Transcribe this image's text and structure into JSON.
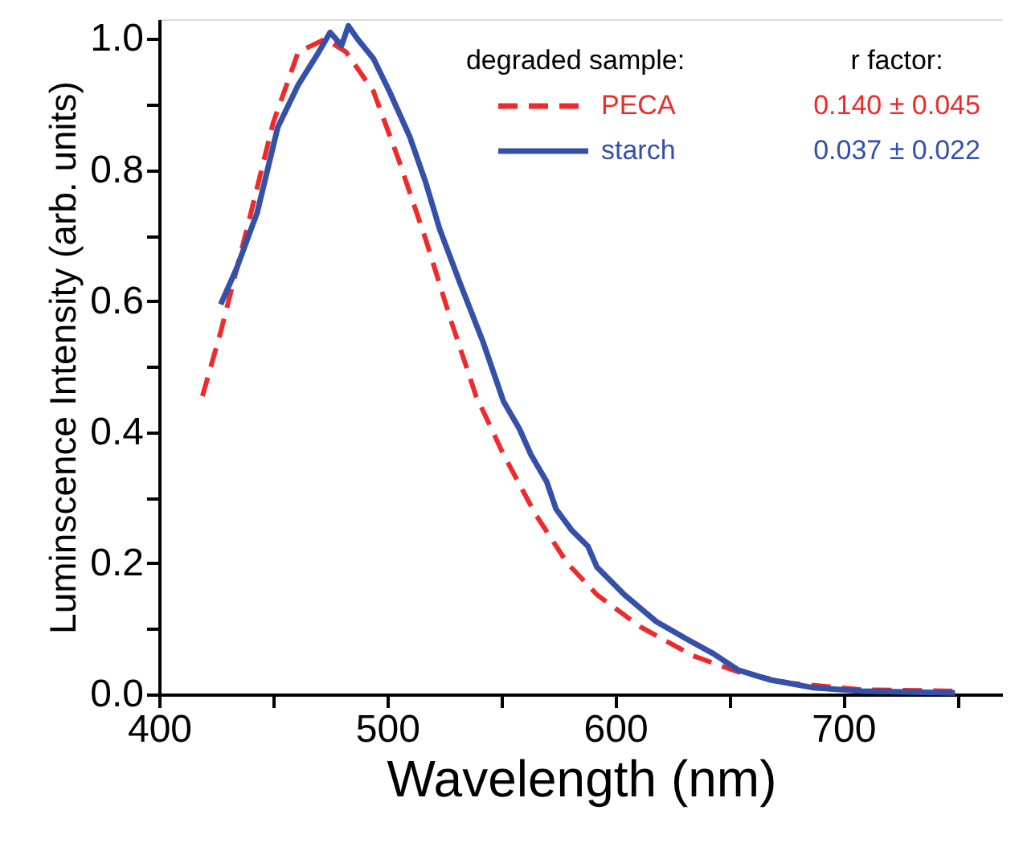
{
  "chart_data": {
    "type": "line",
    "xlabel": "Wavelength (nm)",
    "ylabel": "Luminscence Intensity (arb. units)",
    "legend_title": "degraded sample:",
    "annotations": [
      "r factor:",
      "0.140 ± 0.045",
      "0.037 ± 0.022"
    ],
    "legend": "top right",
    "grid": false,
    "xlim": [
      400,
      770
    ],
    "ylim": [
      0,
      1.03
    ],
    "xticks": [
      400,
      {
        "value": 450,
        "label": null
      },
      500,
      {
        "value": 550,
        "label": null
      },
      600,
      {
        "value": 650,
        "label": null
      },
      700,
      {
        "value": 750,
        "label": null
      }
    ],
    "yticks": [
      {
        "value": 0,
        "label": "0.0"
      },
      {
        "value": 0.1,
        "label": null
      },
      0.2,
      {
        "value": 0.3,
        "label": null
      },
      0.4,
      {
        "value": 0.5,
        "label": null
      },
      0.6,
      {
        "value": 0.7,
        "label": null
      },
      0.8,
      {
        "value": 0.9,
        "label": null
      },
      {
        "value": 1.0,
        "label": "1.0"
      }
    ],
    "series": [
      {
        "name": "PECA",
        "color": "#ee2b2b",
        "line_style": "dashed",
        "x": [
          419,
          427,
          439,
          450,
          461,
          473,
          482,
          494,
          505,
          517,
          528,
          539,
          551,
          565,
          579,
          592,
          611,
          634,
          654,
          677,
          708,
          749
        ],
        "values": [
          0.455,
          0.553,
          0.717,
          0.872,
          0.98,
          1.0,
          0.98,
          0.92,
          0.816,
          0.693,
          0.57,
          0.455,
          0.366,
          0.275,
          0.2,
          0.152,
          0.103,
          0.059,
          0.034,
          0.017,
          0.007,
          0.005
        ]
      },
      {
        "name": "starch",
        "color": "#3450a8",
        "line_style": "solid",
        "x": [
          427,
          434,
          443,
          452,
          461,
          470,
          475,
          480,
          483,
          487,
          494,
          501,
          510,
          517,
          523,
          532,
          542,
          551,
          558,
          563,
          570,
          574,
          581,
          588,
          592,
          604,
          618,
          632,
          643,
          654,
          668,
          687,
          708,
          749
        ],
        "values": [
          0.595,
          0.65,
          0.735,
          0.865,
          0.93,
          0.98,
          1.01,
          0.99,
          1.02,
          1.0,
          0.97,
          0.92,
          0.85,
          0.78,
          0.71,
          0.627,
          0.538,
          0.447,
          0.405,
          0.366,
          0.324,
          0.283,
          0.25,
          0.226,
          0.194,
          0.152,
          0.111,
          0.083,
          0.062,
          0.037,
          0.022,
          0.01,
          0.005,
          0.002
        ]
      }
    ]
  }
}
